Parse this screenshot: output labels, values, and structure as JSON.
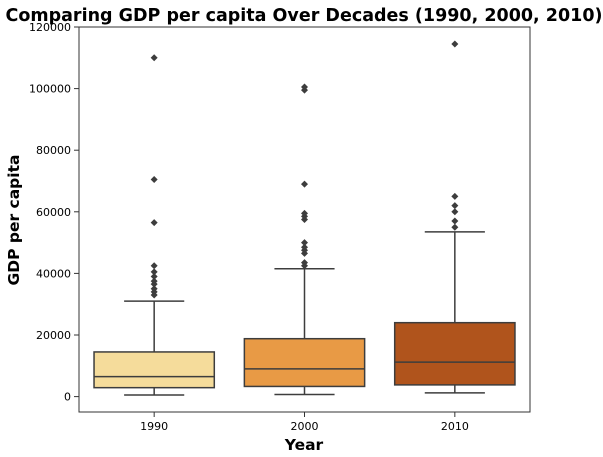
{
  "chart_data": {
    "type": "box",
    "title": "Comparing GDP per capita Over Decades (1990, 2000, 2010)",
    "xlabel": "Year",
    "ylabel": "GDP per capita",
    "categories": [
      "1990",
      "2000",
      "2010"
    ],
    "ylim": [
      -5000,
      120000
    ],
    "yticks": [
      0,
      20000,
      40000,
      60000,
      80000,
      100000,
      120000
    ],
    "ytick_labels": [
      "0",
      "20000",
      "40000",
      "60000",
      "80000",
      "100000",
      "120000"
    ],
    "grid": false,
    "legend": "none",
    "boxes": [
      {
        "category": "1990",
        "color": "#f5dc9b",
        "whisker_low": 500,
        "q1": 2900,
        "median": 6500,
        "q3": 14500,
        "whisker_high": 31000,
        "outliers": [
          33000,
          34000,
          35000,
          36500,
          37500,
          39000,
          40500,
          42500,
          56500,
          70500,
          110000
        ]
      },
      {
        "category": "2000",
        "color": "#e89a45",
        "whisker_low": 700,
        "q1": 3300,
        "median": 9000,
        "q3": 18800,
        "whisker_high": 41500,
        "outliers": [
          42500,
          43500,
          46500,
          47500,
          48500,
          50000,
          57500,
          58500,
          59500,
          69000,
          99500,
          100500
        ]
      },
      {
        "category": "2010",
        "color": "#b0541c",
        "whisker_low": 1200,
        "q1": 3800,
        "median": 11200,
        "q3": 24000,
        "whisker_high": 53500,
        "outliers": [
          55000,
          57000,
          60000,
          62000,
          65000,
          114500
        ]
      }
    ]
  }
}
